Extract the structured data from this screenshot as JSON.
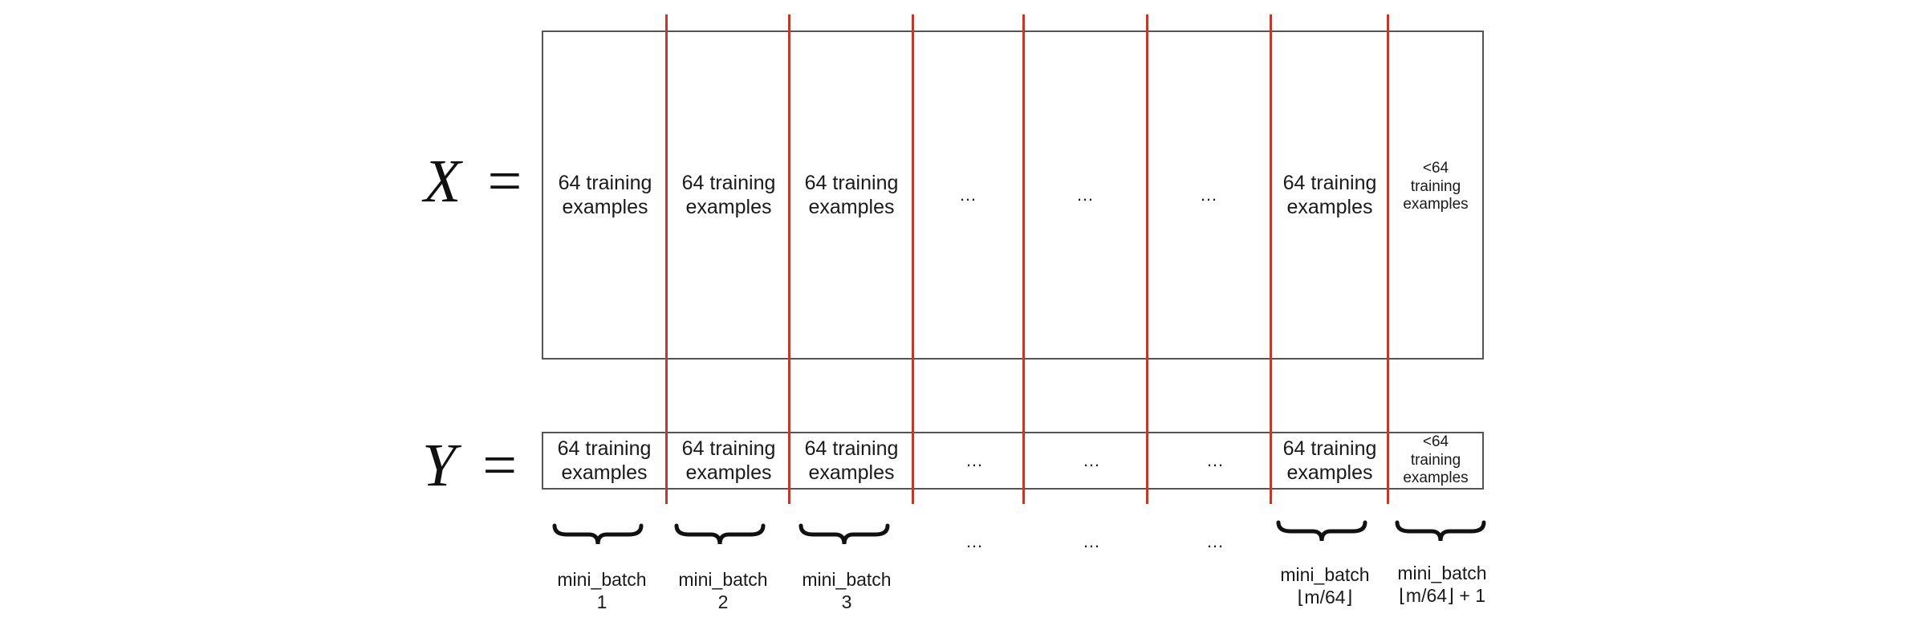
{
  "x_label": "X",
  "y_label": "Y",
  "equals": "=",
  "x_row": {
    "cells": [
      {
        "line1": "64 training",
        "line2": "examples"
      },
      {
        "line1": "64 training",
        "line2": "examples"
      },
      {
        "line1": "64 training",
        "line2": "examples"
      },
      {
        "dots": "…"
      },
      {
        "dots": "…"
      },
      {
        "dots": "…"
      },
      {
        "line1": "64 training",
        "line2": "examples"
      },
      {
        "line1": "<64",
        "line2": "training",
        "line3": "examples"
      }
    ]
  },
  "y_row": {
    "cells": [
      {
        "line1": "64 training",
        "line2": "examples"
      },
      {
        "line1": "64 training",
        "line2": "examples"
      },
      {
        "line1": "64 training",
        "line2": "examples"
      },
      {
        "dots": "…"
      },
      {
        "dots": "…"
      },
      {
        "dots": "…"
      },
      {
        "line1": "64 training",
        "line2": "examples"
      },
      {
        "line1": "<64",
        "line2": "training",
        "line3": "examples"
      }
    ]
  },
  "minibatches": [
    {
      "line1": "mini_batch",
      "line2": "1"
    },
    {
      "line1": "mini_batch",
      "line2": "2"
    },
    {
      "line1": "mini_batch",
      "line2": "3"
    },
    {
      "dots": "…"
    },
    {
      "dots": "…"
    },
    {
      "dots": "…"
    },
    {
      "line1": "mini_batch",
      "line2": "⌊m/64⌋"
    },
    {
      "line1": "mini_batch",
      "line2": "⌊m/64⌋ + 1"
    }
  ],
  "colors": {
    "divider": "#c0392b",
    "border": "#555555",
    "text": "#1a1a1a"
  }
}
